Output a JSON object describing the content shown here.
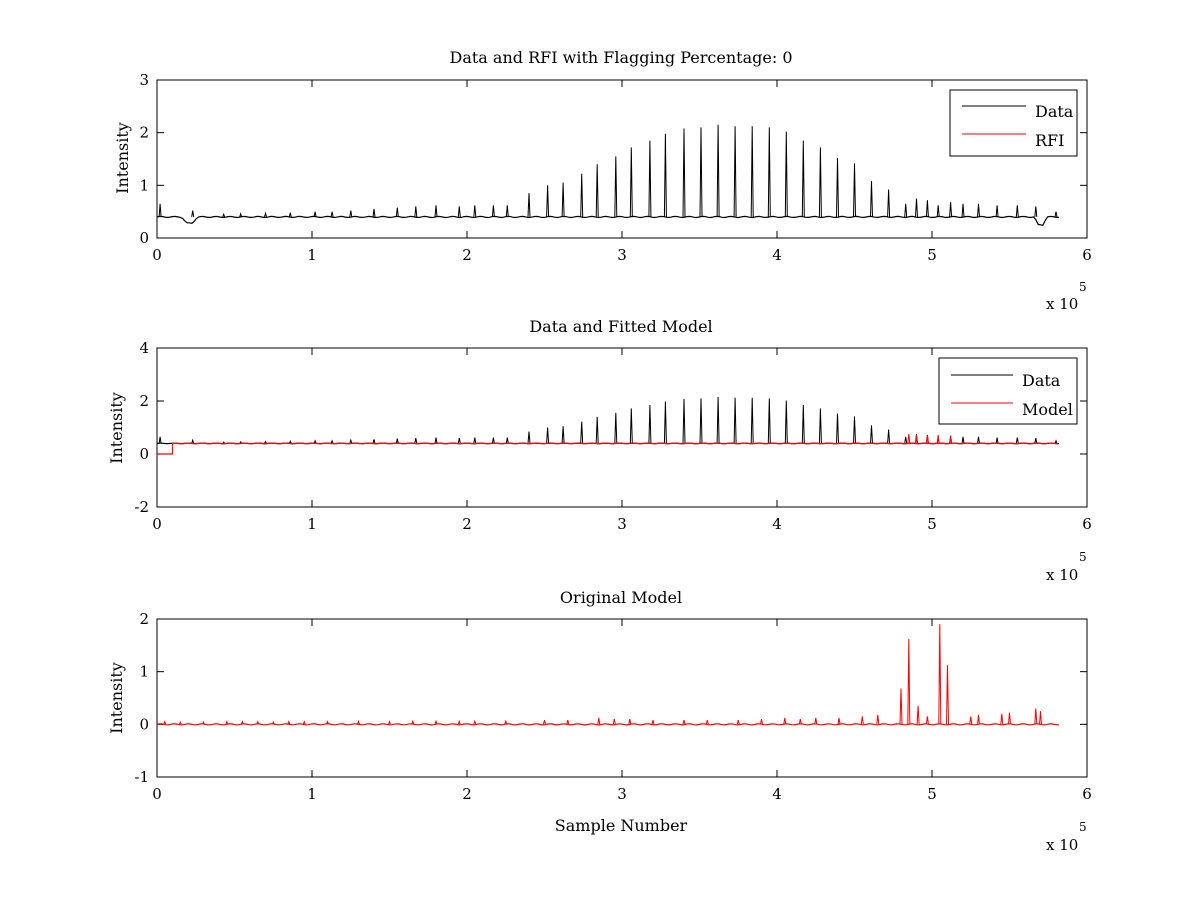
{
  "chart_data": [
    {
      "type": "line",
      "title": "Data and RFI with Flagging Percentage: 0",
      "xlabel": "",
      "ylabel": "Intensity",
      "xlim": [
        0,
        600000
      ],
      "ylim": [
        0,
        3
      ],
      "xticks": [
        0,
        1,
        2,
        3,
        4,
        5,
        6
      ],
      "yticks": [
        0,
        1,
        2,
        3
      ],
      "x_exponent_label": "x 10",
      "x_exponent_power": "5",
      "legend": {
        "position": "top-right",
        "entries": [
          {
            "name": "Data",
            "color": "#000000"
          },
          {
            "name": "RFI",
            "color": "#ff0000"
          }
        ]
      },
      "series": [
        {
          "name": "Data",
          "color": "#000000",
          "baseline": 0.4,
          "spike_x": [
            2000,
            23000,
            43000,
            54000,
            70000,
            86000,
            102000,
            113000,
            125000,
            140000,
            155000,
            167000,
            180000,
            195000,
            205000,
            217000,
            226000,
            240000,
            252000,
            262000,
            274000,
            284000,
            296000,
            306000,
            318000,
            328000,
            340000,
            351000,
            362000,
            373000,
            384000,
            395000,
            406000,
            417000,
            428000,
            439000,
            450000,
            461000,
            472000,
            483000,
            490000,
            497000,
            504000,
            512000,
            520000,
            530000,
            542000,
            555000,
            567000,
            580000
          ],
          "spike_y": [
            0.65,
            0.52,
            0.45,
            0.46,
            0.47,
            0.48,
            0.5,
            0.5,
            0.52,
            0.55,
            0.58,
            0.6,
            0.62,
            0.6,
            0.62,
            0.62,
            0.62,
            0.85,
            1.0,
            1.05,
            1.22,
            1.4,
            1.55,
            1.72,
            1.85,
            1.98,
            2.08,
            2.1,
            2.15,
            2.12,
            2.12,
            2.1,
            2.02,
            1.85,
            1.72,
            1.52,
            1.42,
            1.08,
            0.92,
            0.65,
            0.75,
            0.72,
            0.62,
            0.68,
            0.65,
            0.65,
            0.62,
            0.62,
            0.6,
            0.5
          ],
          "dips": [
            {
              "x": [
                16000,
                26000
              ],
              "y": 0.28
            },
            {
              "x": [
                566000,
                574000
              ],
              "y": 0.25
            }
          ]
        },
        {
          "name": "RFI",
          "color": "#ff0000",
          "values": []
        }
      ]
    },
    {
      "type": "line",
      "title": "Data and Fitted Model",
      "xlabel": "",
      "ylabel": "Intensity",
      "xlim": [
        0,
        600000
      ],
      "ylim": [
        -2,
        4
      ],
      "xticks": [
        0,
        1,
        2,
        3,
        4,
        5,
        6
      ],
      "yticks": [
        -2,
        0,
        2,
        4
      ],
      "x_exponent_label": "x 10",
      "x_exponent_power": "5",
      "legend": {
        "position": "top-right",
        "entries": [
          {
            "name": "Data",
            "color": "#000000"
          },
          {
            "name": "Model",
            "color": "#ff0000"
          }
        ]
      },
      "series": [
        {
          "name": "Data",
          "color": "#000000",
          "baseline": 0.4,
          "spike_x": [
            2000,
            23000,
            43000,
            54000,
            70000,
            86000,
            102000,
            113000,
            125000,
            140000,
            155000,
            167000,
            180000,
            195000,
            205000,
            217000,
            226000,
            240000,
            252000,
            262000,
            274000,
            284000,
            296000,
            306000,
            318000,
            328000,
            340000,
            351000,
            362000,
            373000,
            384000,
            395000,
            406000,
            417000,
            428000,
            439000,
            450000,
            461000,
            472000,
            483000,
            490000,
            497000,
            504000,
            512000,
            520000,
            530000,
            542000,
            555000,
            567000,
            580000
          ],
          "spike_y": [
            0.65,
            0.52,
            0.45,
            0.46,
            0.47,
            0.48,
            0.5,
            0.5,
            0.52,
            0.55,
            0.58,
            0.6,
            0.62,
            0.6,
            0.62,
            0.62,
            0.62,
            0.85,
            1.0,
            1.05,
            1.22,
            1.4,
            1.55,
            1.72,
            1.85,
            1.98,
            2.08,
            2.1,
            2.15,
            2.12,
            2.12,
            2.1,
            2.02,
            1.85,
            1.72,
            1.52,
            1.42,
            1.08,
            0.92,
            0.65,
            0.75,
            0.72,
            0.62,
            0.68,
            0.65,
            0.65,
            0.62,
            0.62,
            0.6,
            0.5
          ]
        },
        {
          "name": "Model",
          "color": "#ff0000",
          "baseline": 0.4,
          "start_segment": {
            "x": [
              0,
              10000
            ],
            "y": 0.0
          },
          "spike_x": [
            485000,
            490000,
            497000,
            504000,
            512000
          ],
          "spike_y": [
            0.75,
            0.72,
            0.7,
            0.72,
            0.7
          ]
        }
      ]
    },
    {
      "type": "line",
      "title": "Original Model",
      "xlabel": "Sample Number",
      "ylabel": "Intensity",
      "xlim": [
        0,
        600000
      ],
      "ylim": [
        -1,
        2
      ],
      "xticks": [
        0,
        1,
        2,
        3,
        4,
        5,
        6
      ],
      "yticks": [
        -1,
        0,
        1,
        2
      ],
      "x_exponent_label": "x 10",
      "x_exponent_power": "5",
      "series": [
        {
          "name": "",
          "color": "#ff0000",
          "baseline": 0.0,
          "x_end": 582000,
          "spike_x": [
            5000,
            15000,
            30000,
            45000,
            55000,
            65000,
            75000,
            85000,
            95000,
            110000,
            130000,
            150000,
            165000,
            180000,
            195000,
            205000,
            225000,
            250000,
            265000,
            285000,
            295000,
            305000,
            320000,
            340000,
            355000,
            375000,
            390000,
            405000,
            415000,
            425000,
            440000,
            455000,
            465000,
            480000,
            485000,
            491000,
            497000,
            505000,
            510000,
            525000,
            530000,
            545000,
            550000,
            567000,
            570000
          ],
          "spike_y": [
            0.05,
            0.04,
            0.04,
            0.05,
            0.05,
            0.05,
            0.04,
            0.05,
            0.05,
            0.05,
            0.06,
            0.05,
            0.06,
            0.06,
            0.06,
            0.06,
            0.06,
            0.08,
            0.08,
            0.12,
            0.1,
            0.1,
            0.08,
            0.08,
            0.08,
            0.08,
            0.1,
            0.12,
            0.1,
            0.12,
            0.12,
            0.15,
            0.18,
            0.68,
            1.62,
            0.35,
            0.15,
            1.9,
            1.12,
            0.15,
            0.18,
            0.2,
            0.22,
            0.3,
            0.25
          ]
        }
      ]
    }
  ]
}
